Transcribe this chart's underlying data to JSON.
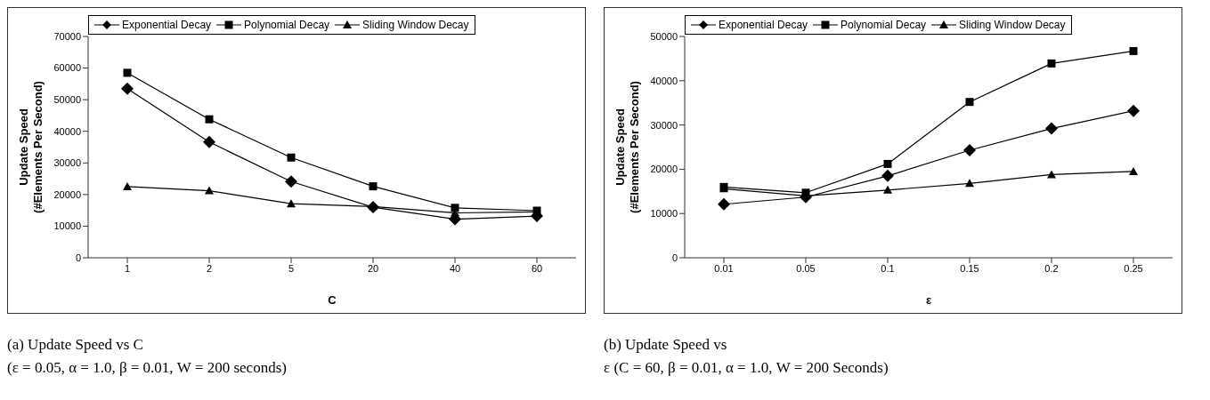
{
  "chart_data": [
    {
      "type": "line",
      "categories": [
        "1",
        "2",
        "5",
        "20",
        "40",
        "60"
      ],
      "xlabel": "C",
      "ylabel": "Update Speed\n(#Elements Per Second)",
      "ylim": [
        0,
        70000
      ],
      "yticks": [
        0,
        10000,
        20000,
        30000,
        40000,
        50000,
        60000,
        70000
      ],
      "grid": false,
      "legend": "top",
      "series": [
        {
          "name": "Exponential Decay",
          "color": "#000000",
          "marker": "diamond",
          "values": [
            53500,
            36600,
            24100,
            16000,
            12200,
            13200
          ]
        },
        {
          "name": "Polynomial Decay",
          "color": "#000000",
          "marker": "square",
          "values": [
            58500,
            43800,
            31700,
            22600,
            15800,
            14900
          ]
        },
        {
          "name": "Sliding Window Decay",
          "color": "#000000",
          "marker": "triangle",
          "values": [
            22500,
            21200,
            17100,
            16200,
            14200,
            14500
          ]
        }
      ],
      "annotations": [
        "(a) Update Speed vs C",
        "(ε = 0.05, α = 1.0, β = 0.01, W = 200 seconds)"
      ]
    },
    {
      "type": "line",
      "categories": [
        "0.01",
        "0.05",
        "0.1",
        "0.15",
        "0.2",
        "0.25"
      ],
      "xlabel": "ε",
      "ylabel": "Update Speed\n(#Elements Per Second)",
      "ylim": [
        0,
        50000
      ],
      "yticks": [
        0,
        10000,
        20000,
        30000,
        40000,
        50000
      ],
      "grid": false,
      "legend": "top",
      "series": [
        {
          "name": "Exponential Decay",
          "color": "#000000",
          "marker": "diamond",
          "values": [
            12100,
            13700,
            18500,
            24300,
            29200,
            33200
          ]
        },
        {
          "name": "Polynomial Decay",
          "color": "#000000",
          "marker": "square",
          "values": [
            16000,
            14700,
            21200,
            35200,
            43900,
            46700
          ]
        },
        {
          "name": "Sliding Window Decay",
          "color": "#000000",
          "marker": "triangle",
          "values": [
            15600,
            14000,
            15300,
            16800,
            18800,
            19500
          ]
        }
      ],
      "annotations": [
        "(b) Update Speed vs",
        "ε (C = 60, β = 0.01, α = 1.0, W = 200 Seconds)"
      ]
    }
  ]
}
